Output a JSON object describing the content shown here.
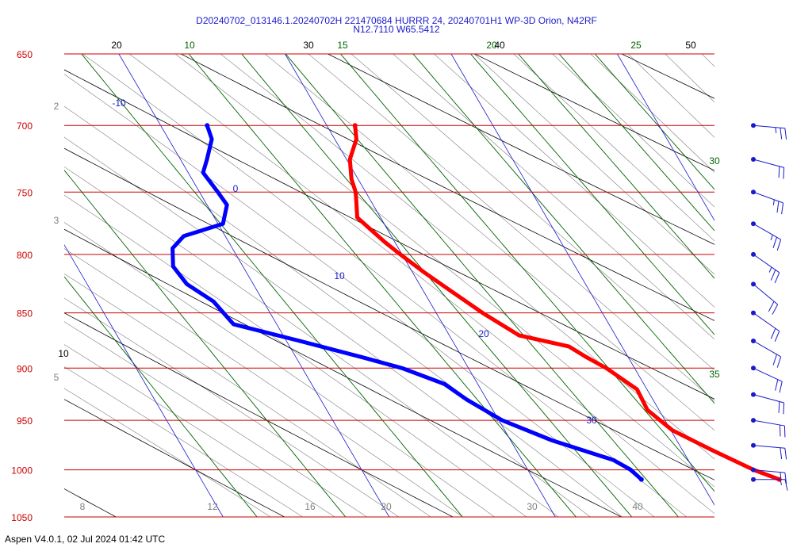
{
  "header": {
    "title": "D20240702_013146.1.20240702H 221470684 HURRR 24, 20240701H1 WP-3D Orion, N42RF",
    "position": "N12.7110 W65.5412"
  },
  "footer": {
    "text": "Aspen V4.0.1, 02 Jul 2024  01:42 UTC"
  },
  "colors": {
    "isobar": "#cc0000",
    "temperature": "#ff0000",
    "dewpoint": "#0000ff",
    "mixing_ratio": "#006400",
    "dry_adiabat": "#000000",
    "moist_adiabat": "#7f7f7f",
    "isotherm": "#1a1acc",
    "wind": "#1a1acc"
  },
  "chart_data": {
    "type": "line",
    "diagram": "skew-t",
    "pressure_levels": [
      650,
      700,
      750,
      800,
      850,
      900,
      950,
      1000,
      1050
    ],
    "isotherm_labels": [
      -10,
      0,
      10,
      20,
      30
    ],
    "dry_adiabat_labels": [
      20,
      30,
      40,
      50,
      10
    ],
    "mixing_ratio_labels": [
      10,
      15,
      20,
      25,
      30,
      35
    ],
    "moist_adiabat_labels": [
      8,
      12,
      16,
      20,
      30,
      40,
      2,
      3,
      5
    ],
    "series": [
      {
        "points": [
          [
            700,
            11.7
          ],
          [
            710,
            11.3
          ],
          [
            725,
            10.2
          ],
          [
            740,
            9.6
          ],
          [
            750,
            9.4
          ],
          [
            760,
            9.0
          ],
          [
            770,
            8.6
          ],
          [
            780,
            9.0
          ],
          [
            790,
            9.4
          ],
          [
            800,
            9.9
          ],
          [
            815,
            10.7
          ],
          [
            830,
            11.6
          ],
          [
            850,
            12.8
          ],
          [
            870,
            14.2
          ],
          [
            880,
            16.8
          ],
          [
            890,
            17.5
          ],
          [
            900,
            18.3
          ],
          [
            920,
            19.4
          ],
          [
            940,
            19.3
          ],
          [
            960,
            20.1
          ],
          [
            980,
            21.8
          ],
          [
            1000,
            23.6
          ],
          [
            1010,
            24.8
          ]
        ]
      },
      {
        "points": [
          [
            700,
            2.8
          ],
          [
            710,
            2.6
          ],
          [
            725,
            1.6
          ],
          [
            735,
            0.9
          ],
          [
            750,
            1.1
          ],
          [
            760,
            1.2
          ],
          [
            775,
            0.3
          ],
          [
            785,
            -2.5
          ],
          [
            795,
            -3.6
          ],
          [
            810,
            -4.2
          ],
          [
            825,
            -4.0
          ],
          [
            840,
            -3.0
          ],
          [
            850,
            -2.8
          ],
          [
            860,
            -2.6
          ],
          [
            875,
            0.8
          ],
          [
            890,
            4.0
          ],
          [
            900,
            6.0
          ],
          [
            915,
            8.0
          ],
          [
            930,
            8.8
          ],
          [
            950,
            10.2
          ],
          [
            970,
            12.5
          ],
          [
            990,
            15.5
          ],
          [
            1000,
            16.2
          ],
          [
            1010,
            16.5
          ]
        ]
      }
    ],
    "wind_barbs": [
      {
        "p": 700,
        "dir": 95,
        "spd": 25
      },
      {
        "p": 725,
        "dir": 105,
        "spd": 20
      },
      {
        "p": 750,
        "dir": 110,
        "spd": 25
      },
      {
        "p": 775,
        "dir": 120,
        "spd": 25
      },
      {
        "p": 800,
        "dir": 125,
        "spd": 25
      },
      {
        "p": 825,
        "dir": 130,
        "spd": 20
      },
      {
        "p": 850,
        "dir": 125,
        "spd": 20
      },
      {
        "p": 875,
        "dir": 120,
        "spd": 20
      },
      {
        "p": 900,
        "dir": 115,
        "spd": 20
      },
      {
        "p": 925,
        "dir": 105,
        "spd": 20
      },
      {
        "p": 950,
        "dir": 100,
        "spd": 20
      },
      {
        "p": 975,
        "dir": 95,
        "spd": 20
      },
      {
        "p": 1000,
        "dir": 95,
        "spd": 15
      },
      {
        "p": 1010,
        "dir": 90,
        "spd": 15
      }
    ]
  }
}
